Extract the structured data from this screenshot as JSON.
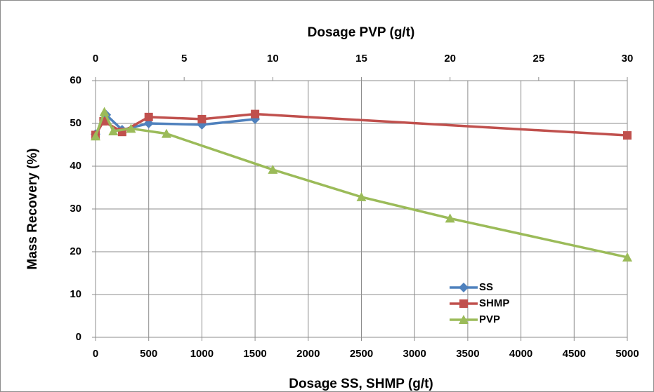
{
  "chart_data": {
    "type": "line",
    "x_label": "Dosage SS, SHMP (g/t)",
    "x2_label": "Dosage PVP (g/t)",
    "y_label": "Mass Recovery (%)",
    "xlim": [
      0,
      5000
    ],
    "xticks": [
      0,
      500,
      1000,
      1500,
      2000,
      2500,
      3000,
      3500,
      4000,
      4500,
      5000
    ],
    "x2lim": [
      0,
      30
    ],
    "x2ticks": [
      0,
      5,
      10,
      15,
      20,
      25,
      30
    ],
    "ylim": [
      0,
      60
    ],
    "yticks": [
      0,
      10,
      20,
      30,
      40,
      50,
      60
    ],
    "grid": true,
    "legend": "lower right",
    "series": [
      {
        "name": "SS",
        "color": "#4f81bd",
        "marker": "diamond",
        "x": [
          0,
          100,
          250,
          500,
          1000,
          1500
        ],
        "values": [
          47.5,
          52,
          48.5,
          50,
          49.7,
          51
        ]
      },
      {
        "name": "SHMP",
        "color": "#c0504d",
        "marker": "square",
        "x": [
          0,
          75,
          250,
          500,
          1000,
          1500,
          5000
        ],
        "values": [
          47.3,
          50.5,
          48,
          51.5,
          51,
          52.2,
          47.2
        ]
      },
      {
        "name": "PVP",
        "color": "#9bbb59",
        "marker": "triangle",
        "axis": "x2",
        "x": [
          0,
          0.5,
          1,
          2,
          4,
          10,
          15,
          20,
          30
        ],
        "values": [
          47,
          52.7,
          48.2,
          48.8,
          47.6,
          39.2,
          32.8,
          27.8,
          18.7
        ]
      }
    ]
  }
}
